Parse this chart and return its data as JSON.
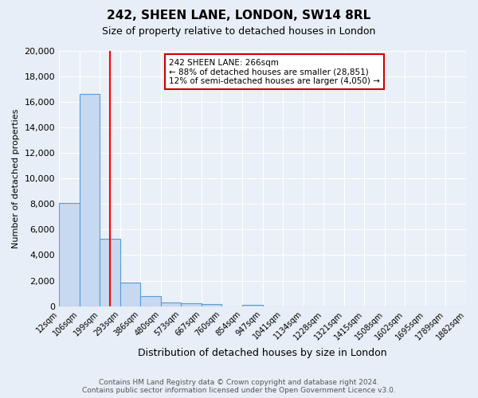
{
  "title": "242, SHEEN LANE, LONDON, SW14 8RL",
  "subtitle": "Size of property relative to detached houses in London",
  "xlabel": "Distribution of detached houses by size in London",
  "ylabel": "Number of detached properties",
  "bin_labels": [
    "12sqm",
    "106sqm",
    "199sqm",
    "293sqm",
    "386sqm",
    "480sqm",
    "573sqm",
    "667sqm",
    "760sqm",
    "854sqm",
    "947sqm",
    "1041sqm",
    "1134sqm",
    "1228sqm",
    "1321sqm",
    "1415sqm",
    "1508sqm",
    "1602sqm",
    "1695sqm",
    "1789sqm",
    "1882sqm"
  ],
  "bar_values": [
    8100,
    16600,
    5300,
    1850,
    800,
    300,
    200,
    130,
    0,
    120,
    0,
    0,
    0,
    0,
    0,
    0,
    0,
    0,
    0,
    0
  ],
  "bar_color": "#c6d9f0",
  "bar_edge_color": "#5b9bd5",
  "ylim": [
    0,
    20000
  ],
  "yticks": [
    0,
    2000,
    4000,
    6000,
    8000,
    10000,
    12000,
    14000,
    16000,
    18000,
    20000
  ],
  "red_line_x": 2.5,
  "annotation_title": "242 SHEEN LANE: 266sqm",
  "annotation_line1": "← 88% of detached houses are smaller (28,851)",
  "annotation_line2": "12% of semi-detached houses are larger (4,050) →",
  "annotation_box_color": "#ffffff",
  "annotation_box_edge": "#cc0000",
  "footer_line1": "Contains HM Land Registry data © Crown copyright and database right 2024.",
  "footer_line2": "Contains public sector information licensed under the Open Government Licence v3.0.",
  "background_color": "#e8eef7",
  "plot_background": "#eaf0f8"
}
